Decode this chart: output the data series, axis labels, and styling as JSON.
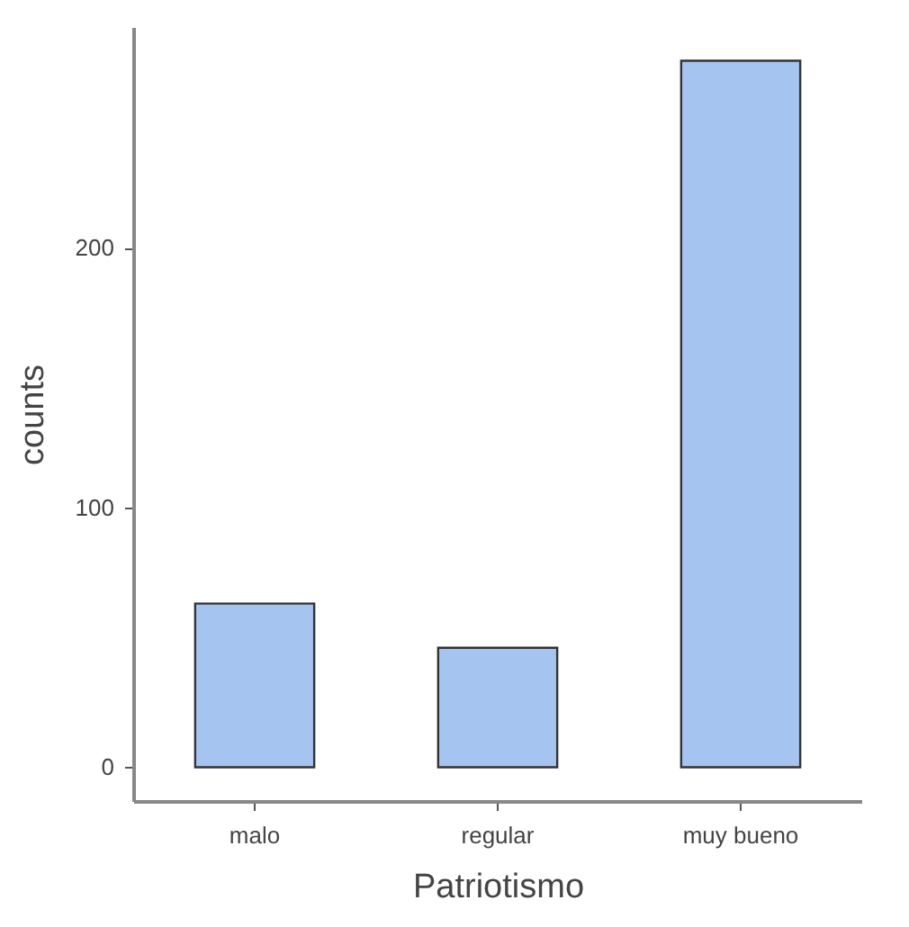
{
  "chart_data": {
    "type": "bar",
    "xlabel": "Patriotismo",
    "ylabel": "counts",
    "categories": [
      "malo",
      "regular",
      "muy bueno"
    ],
    "values": [
      63,
      46,
      272
    ],
    "color": "#a6c4f0",
    "ylim": [
      -13,
      285
    ],
    "yticks": [
      0,
      100,
      200
    ],
    "grid": false
  }
}
